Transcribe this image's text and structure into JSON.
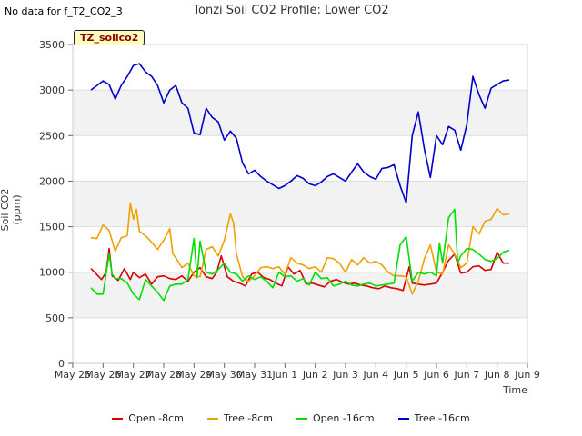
{
  "header": {
    "nodata_text": "No data for f_T2_CO2_3"
  },
  "chart_data": {
    "type": "line",
    "title": "Tonzi Soil CO2 Profile: Lower CO2",
    "badge": "TZ_soilco2",
    "xlabel": "Time",
    "ylabel": "Soil CO2 (ppm)",
    "ylim": [
      0,
      3500
    ],
    "xlim": [
      0,
      15
    ],
    "yticks": [
      0,
      500,
      1000,
      1500,
      2000,
      2500,
      3000,
      3500
    ],
    "xticks": [
      {
        "pos": 0,
        "label": "May 25"
      },
      {
        "pos": 1,
        "label": "May 26"
      },
      {
        "pos": 2,
        "label": "May 27"
      },
      {
        "pos": 3,
        "label": "May 28"
      },
      {
        "pos": 4,
        "label": "May 29"
      },
      {
        "pos": 5,
        "label": "May 30"
      },
      {
        "pos": 6,
        "label": "May 31"
      },
      {
        "pos": 7,
        "label": "Jun 1"
      },
      {
        "pos": 8,
        "label": "Jun 2"
      },
      {
        "pos": 9,
        "label": "Jun 3"
      },
      {
        "pos": 10,
        "label": "Jun 4"
      },
      {
        "pos": 11,
        "label": "Jun 5"
      },
      {
        "pos": 12,
        "label": "Jun 6"
      },
      {
        "pos": 13,
        "label": "Jun 7"
      },
      {
        "pos": 14,
        "label": "Jun 8"
      },
      {
        "pos": 15,
        "label": "Jun 9"
      }
    ],
    "series": [
      {
        "name": "Open -8cm",
        "color": "#dd0000",
        "x": [
          0.6,
          0.75,
          0.95,
          1.1,
          1.2,
          1.3,
          1.5,
          1.7,
          1.9,
          2.0,
          2.2,
          2.4,
          2.6,
          2.8,
          3.0,
          3.2,
          3.4,
          3.6,
          3.8,
          4.0,
          4.2,
          4.4,
          4.6,
          4.75,
          4.9,
          5.1,
          5.3,
          5.5,
          5.7,
          5.9,
          6.1,
          6.3,
          6.5,
          6.7,
          6.9,
          7.1,
          7.3,
          7.5,
          7.7,
          7.9,
          8.1,
          8.3,
          8.5,
          8.7,
          8.9,
          9.1,
          9.3,
          9.5,
          9.7,
          9.9,
          10.1,
          10.3,
          10.5,
          10.7,
          10.9,
          11.1,
          11.2,
          11.4,
          11.6,
          11.8,
          12.0,
          12.2,
          12.4,
          12.6,
          12.8,
          13.0,
          13.2,
          13.4,
          13.6,
          13.8,
          14.0,
          14.2,
          14.4
        ],
        "y": [
          1040,
          990,
          920,
          1000,
          1260,
          960,
          910,
          1040,
          920,
          1000,
          940,
          980,
          870,
          950,
          960,
          930,
          920,
          960,
          900,
          1000,
          1050,
          950,
          930,
          1000,
          1180,
          950,
          900,
          880,
          850,
          980,
          1000,
          940,
          920,
          880,
          850,
          1060,
          980,
          1020,
          870,
          880,
          860,
          840,
          900,
          920,
          890,
          870,
          880,
          860,
          850,
          830,
          820,
          850,
          830,
          820,
          800,
          1060,
          880,
          870,
          860,
          870,
          880,
          1000,
          1130,
          1200,
          990,
          1000,
          1060,
          1070,
          1020,
          1030,
          1220,
          1100,
          1100
        ]
      },
      {
        "name": "Tree -8cm",
        "color": "#f0a000",
        "x": [
          0.6,
          0.8,
          1.0,
          1.2,
          1.4,
          1.6,
          1.8,
          1.9,
          2.0,
          2.1,
          2.2,
          2.4,
          2.6,
          2.8,
          3.0,
          3.2,
          3.3,
          3.4,
          3.6,
          3.8,
          4.0,
          4.2,
          4.4,
          4.6,
          4.8,
          5.0,
          5.2,
          5.3,
          5.4,
          5.6,
          5.8,
          6.0,
          6.2,
          6.4,
          6.6,
          6.8,
          7.0,
          7.2,
          7.4,
          7.6,
          7.8,
          8.0,
          8.2,
          8.4,
          8.6,
          8.8,
          9.0,
          9.2,
          9.4,
          9.6,
          9.8,
          10.0,
          10.2,
          10.4,
          10.6,
          10.8,
          11.0,
          11.2,
          11.4,
          11.6,
          11.8,
          12.0,
          12.2,
          12.4,
          12.6,
          12.8,
          13.0,
          13.2,
          13.4,
          13.6,
          13.8,
          14.0,
          14.2,
          14.4
        ],
        "y": [
          1380,
          1370,
          1520,
          1460,
          1230,
          1380,
          1400,
          1760,
          1580,
          1690,
          1450,
          1400,
          1330,
          1250,
          1350,
          1480,
          1200,
          1160,
          1050,
          1100,
          960,
          950,
          1250,
          1280,
          1180,
          1350,
          1640,
          1550,
          1200,
          950,
          900,
          960,
          1050,
          1060,
          1040,
          1060,
          980,
          1160,
          1100,
          1080,
          1040,
          1060,
          1000,
          1160,
          1150,
          1100,
          1000,
          1140,
          1080,
          1160,
          1100,
          1120,
          1080,
          1000,
          960,
          960,
          950,
          760,
          900,
          1150,
          1300,
          1000,
          980,
          1300,
          1200,
          1050,
          1100,
          1500,
          1420,
          1560,
          1580,
          1700,
          1630,
          1640
        ]
      },
      {
        "name": "Open -16cm",
        "color": "#00e000",
        "x": [
          0.6,
          0.8,
          1.0,
          1.2,
          1.3,
          1.4,
          1.6,
          1.8,
          2.0,
          2.2,
          2.4,
          2.6,
          2.8,
          3.0,
          3.2,
          3.4,
          3.6,
          3.8,
          4.0,
          4.1,
          4.2,
          4.4,
          4.6,
          4.8,
          5.0,
          5.2,
          5.4,
          5.6,
          5.8,
          6.0,
          6.2,
          6.4,
          6.6,
          6.8,
          7.0,
          7.2,
          7.4,
          7.6,
          7.8,
          8.0,
          8.2,
          8.4,
          8.6,
          8.8,
          9.0,
          9.2,
          9.4,
          9.6,
          9.8,
          10.0,
          10.2,
          10.4,
          10.6,
          10.8,
          11.0,
          11.2,
          11.4,
          11.6,
          11.8,
          12.0,
          12.1,
          12.2,
          12.4,
          12.6,
          12.7,
          12.8,
          13.0,
          13.2,
          13.4,
          13.6,
          13.8,
          14.0,
          14.2,
          14.4
        ],
        "y": [
          830,
          760,
          760,
          1200,
          980,
          930,
          930,
          880,
          760,
          700,
          920,
          850,
          780,
          690,
          850,
          870,
          870,
          920,
          1370,
          940,
          1340,
          1000,
          980,
          1030,
          1100,
          1000,
          980,
          900,
          960,
          920,
          950,
          900,
          830,
          1000,
          950,
          960,
          900,
          930,
          860,
          1000,
          930,
          940,
          850,
          870,
          900,
          860,
          850,
          870,
          880,
          850,
          860,
          870,
          880,
          1300,
          1390,
          900,
          1000,
          980,
          1000,
          960,
          1320,
          1100,
          1600,
          1690,
          1100,
          1180,
          1260,
          1250,
          1200,
          1140,
          1120,
          1150,
          1220,
          1240
        ]
      },
      {
        "name": "Tree -16cm",
        "color": "#0000cc",
        "x": [
          0.6,
          0.8,
          1.0,
          1.2,
          1.4,
          1.6,
          1.8,
          2.0,
          2.2,
          2.4,
          2.6,
          2.8,
          3.0,
          3.2,
          3.4,
          3.6,
          3.8,
          4.0,
          4.2,
          4.4,
          4.6,
          4.8,
          5.0,
          5.2,
          5.4,
          5.6,
          5.8,
          6.0,
          6.2,
          6.4,
          6.6,
          6.8,
          7.0,
          7.2,
          7.4,
          7.6,
          7.8,
          8.0,
          8.2,
          8.4,
          8.6,
          8.8,
          9.0,
          9.2,
          9.4,
          9.6,
          9.8,
          10.0,
          10.2,
          10.4,
          10.6,
          10.8,
          11.0,
          11.2,
          11.4,
          11.6,
          11.8,
          12.0,
          12.2,
          12.4,
          12.6,
          12.8,
          13.0,
          13.2,
          13.4,
          13.6,
          13.8,
          14.0,
          14.2,
          14.4
        ],
        "y": [
          3000,
          3050,
          3100,
          3060,
          2900,
          3050,
          3150,
          3270,
          3290,
          3200,
          3150,
          3050,
          2860,
          3000,
          3050,
          2860,
          2800,
          2530,
          2510,
          2800,
          2700,
          2650,
          2450,
          2550,
          2470,
          2200,
          2080,
          2120,
          2050,
          2000,
          1960,
          1920,
          1950,
          2000,
          2060,
          2030,
          1970,
          1950,
          1990,
          2050,
          2080,
          2040,
          2000,
          2100,
          2190,
          2100,
          2050,
          2020,
          2140,
          2150,
          2180,
          1950,
          1760,
          2500,
          2760,
          2350,
          2040,
          2500,
          2400,
          2600,
          2560,
          2340,
          2620,
          3150,
          2950,
          2800,
          3020,
          3060,
          3100,
          3110
        ]
      }
    ]
  }
}
